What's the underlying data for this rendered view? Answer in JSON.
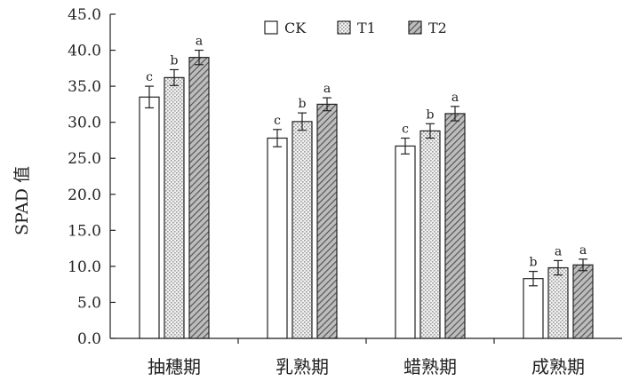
{
  "chart_data": {
    "type": "bar",
    "title": "",
    "xlabel": "",
    "ylabel": "SPAD 值",
    "ylim": [
      0,
      45
    ],
    "yticks": [
      "0.0",
      "5.0",
      "10.0",
      "15.0",
      "20.0",
      "25.0",
      "30.0",
      "35.0",
      "40.0",
      "45.0"
    ],
    "categories": [
      "抽穗期",
      "乳熟期",
      "蜡熟期",
      "成熟期"
    ],
    "legend_position": "top-right",
    "grid": false,
    "series": [
      {
        "name": "CK",
        "pattern": "plain",
        "values": [
          33.5,
          27.8,
          26.7,
          8.3
        ],
        "errors": [
          1.5,
          1.2,
          1.1,
          1.0
        ],
        "labels": [
          "c",
          "c",
          "c",
          "b"
        ]
      },
      {
        "name": "T1",
        "pattern": "dots",
        "values": [
          36.2,
          30.1,
          28.8,
          9.8
        ],
        "errors": [
          1.1,
          1.2,
          1.0,
          1.0
        ],
        "labels": [
          "b",
          "b",
          "b",
          "a"
        ]
      },
      {
        "name": "T2",
        "pattern": "hatch",
        "values": [
          39.0,
          32.5,
          31.2,
          10.2
        ],
        "errors": [
          1.0,
          0.9,
          1.0,
          0.8
        ],
        "labels": [
          "a",
          "a",
          "a",
          "a"
        ]
      }
    ]
  }
}
